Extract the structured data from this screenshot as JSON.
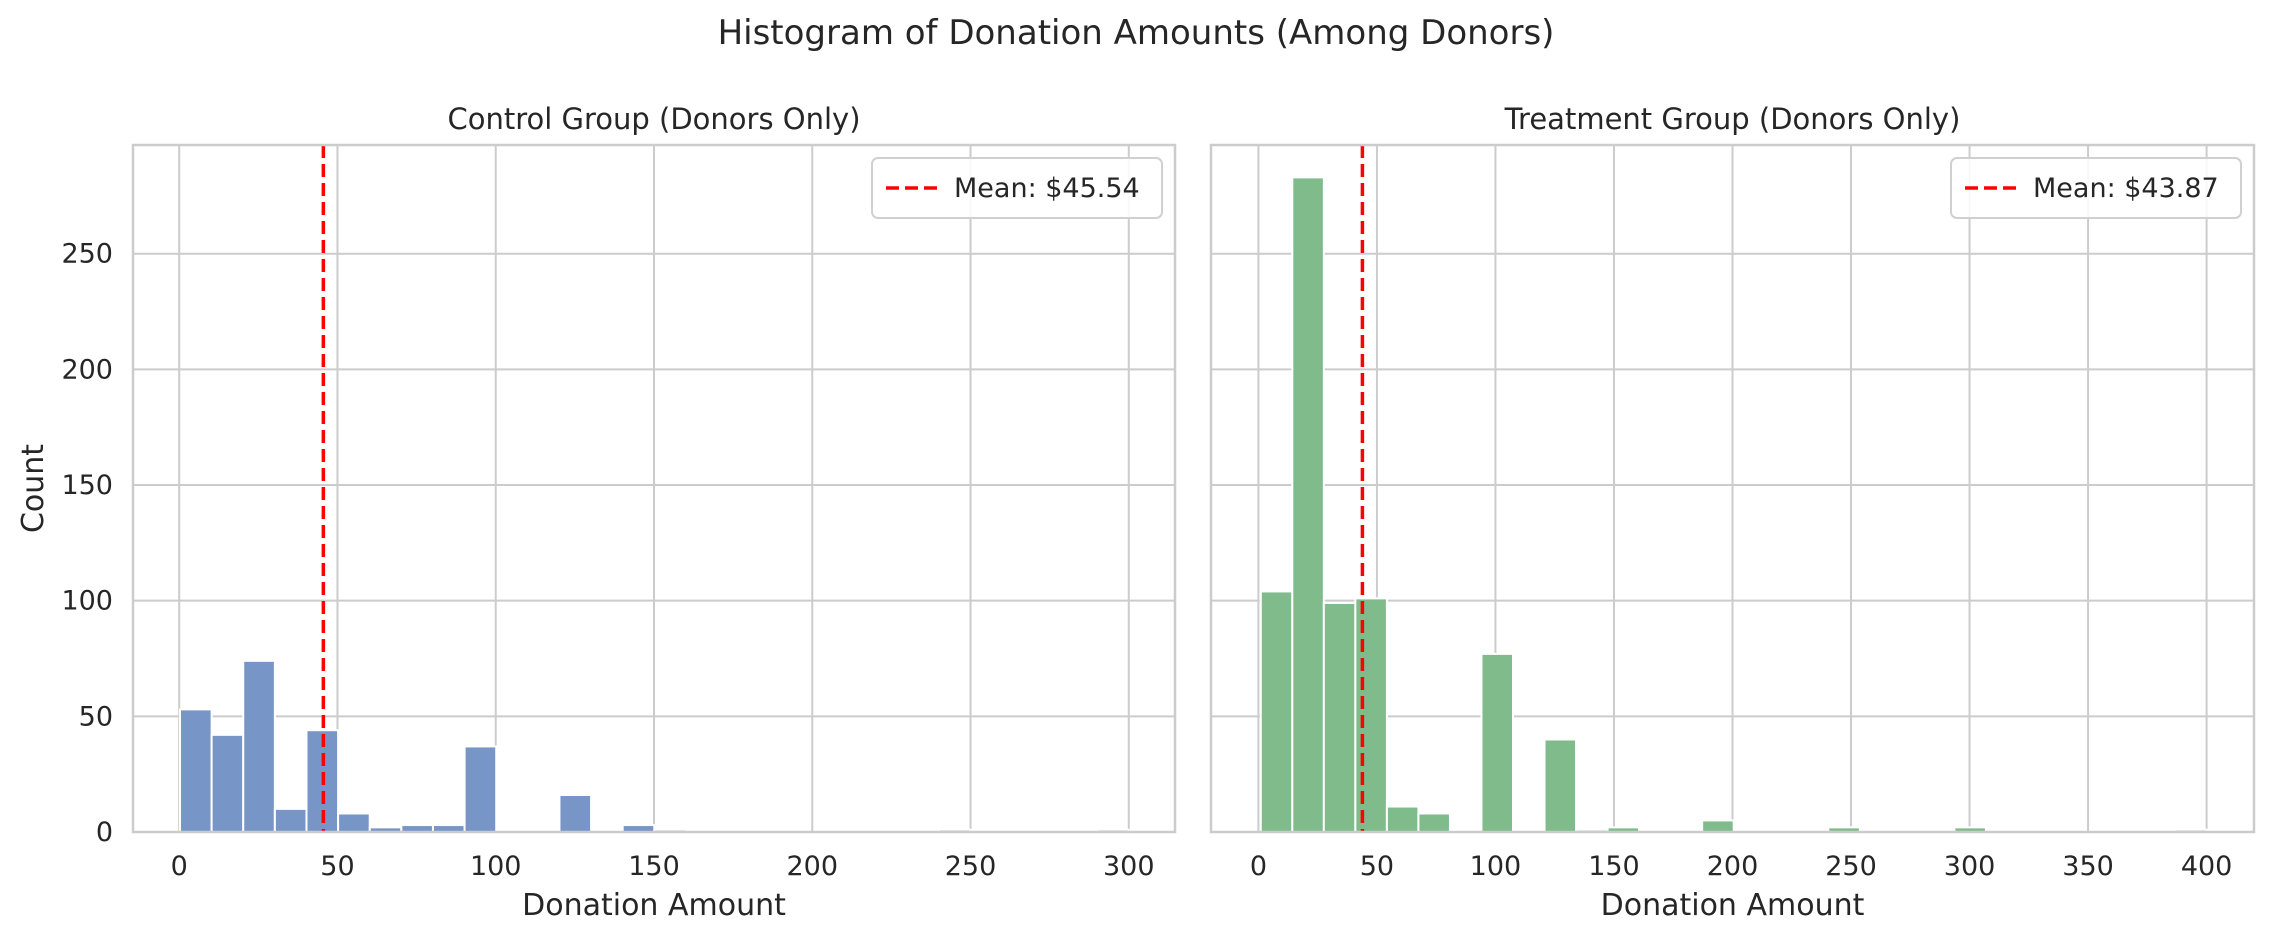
{
  "figure": {
    "title": "Histogram of Donation Amounts (Among Donors)"
  },
  "colors": {
    "control_bar": "#7795C6",
    "treatment_bar": "#7FBB8B",
    "mean_line": "#FF0000",
    "grid": "#CCCCCC",
    "spine": "#CCCCCC"
  },
  "chart_data": [
    {
      "type": "bar",
      "title": "Control Group (Donors Only)",
      "xlabel": "Donation Amount",
      "ylabel": "Count",
      "xlim": [
        -14.6,
        314.6
      ],
      "ylim": [
        0,
        297
      ],
      "xticks": [
        0,
        50,
        100,
        150,
        200,
        250,
        300
      ],
      "yticks": [
        0,
        50,
        100,
        150,
        200,
        250
      ],
      "grid": true,
      "legend_position": "top-right",
      "bin_start": 0.25,
      "bin_width": 9.99,
      "counts": [
        53,
        42,
        74,
        10,
        44,
        8,
        2,
        3,
        3,
        37,
        0,
        0,
        16,
        0,
        3,
        1,
        0,
        0,
        0,
        0,
        0,
        0,
        0,
        0,
        1,
        0,
        0,
        0,
        0,
        1
      ],
      "mean": 45.54,
      "mean_label": "Mean: $45.54"
    },
    {
      "type": "bar",
      "title": "Treatment Group (Donors Only)",
      "xlabel": "Donation Amount",
      "ylabel": "",
      "xlim": [
        -20,
        420
      ],
      "ylim": [
        0,
        297
      ],
      "xticks": [
        0,
        50,
        100,
        150,
        200,
        250,
        300,
        350,
        400
      ],
      "yticks": [
        0,
        50,
        100,
        150,
        200,
        250
      ],
      "grid": true,
      "legend_position": "top-right",
      "bin_start": 1,
      "bin_width": 13.3,
      "counts": [
        104,
        283,
        99,
        101,
        11,
        8,
        0,
        77,
        0,
        40,
        1,
        2,
        0,
        0,
        5,
        0,
        0,
        0,
        2,
        0,
        0,
        0,
        2,
        0,
        0,
        0,
        0,
        0,
        0,
        1
      ],
      "mean": 43.87,
      "mean_label": "Mean: $43.87"
    }
  ]
}
